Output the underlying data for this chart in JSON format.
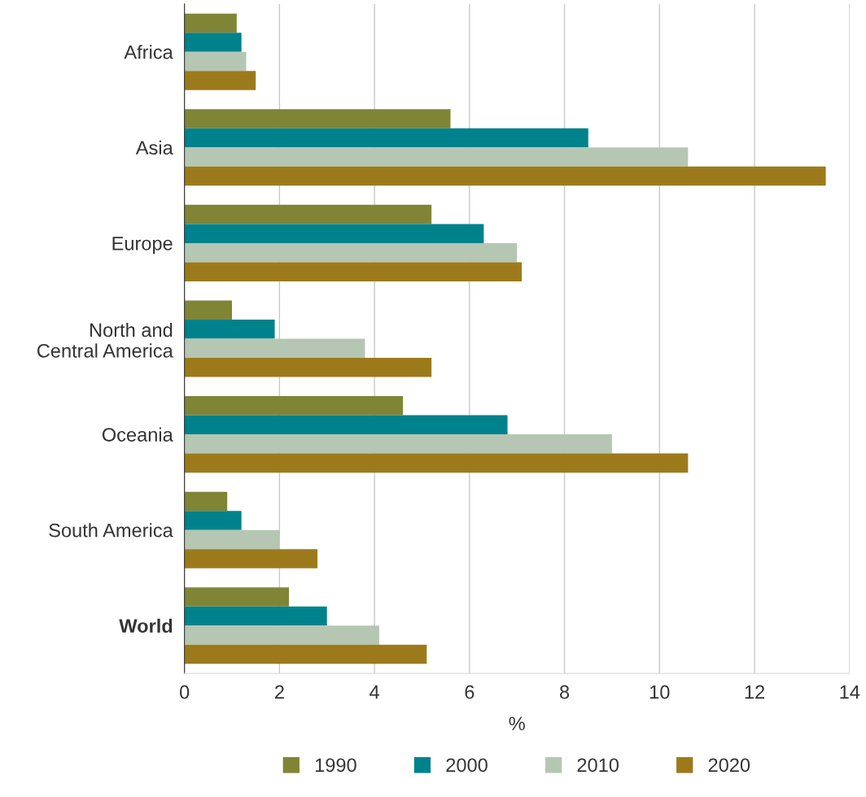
{
  "chart_data": {
    "type": "bar",
    "orientation": "horizontal",
    "xlabel": "%",
    "categories": [
      "Africa",
      "Asia",
      "Europe",
      "North and\nCentral America",
      "Oceania",
      "South America",
      "World"
    ],
    "series": [
      {
        "name": "1990",
        "color": "#808536",
        "values": [
          1.1,
          5.6,
          5.2,
          1.0,
          4.6,
          0.9,
          2.2
        ]
      },
      {
        "name": "2000",
        "color": "#00828c",
        "values": [
          1.2,
          8.5,
          6.3,
          1.9,
          6.8,
          1.2,
          3.0
        ]
      },
      {
        "name": "2010",
        "color": "#b5c7b3",
        "values": [
          1.3,
          10.6,
          7.0,
          3.8,
          9.0,
          2.0,
          4.1
        ]
      },
      {
        "name": "2020",
        "color": "#9c7a1c",
        "values": [
          1.5,
          13.5,
          7.1,
          5.2,
          10.6,
          2.8,
          5.1
        ]
      }
    ],
    "xlim": [
      0,
      14
    ],
    "xticks": [
      0,
      2,
      4,
      6,
      8,
      10,
      12,
      14
    ],
    "grid": "x",
    "legend": "bottom"
  }
}
